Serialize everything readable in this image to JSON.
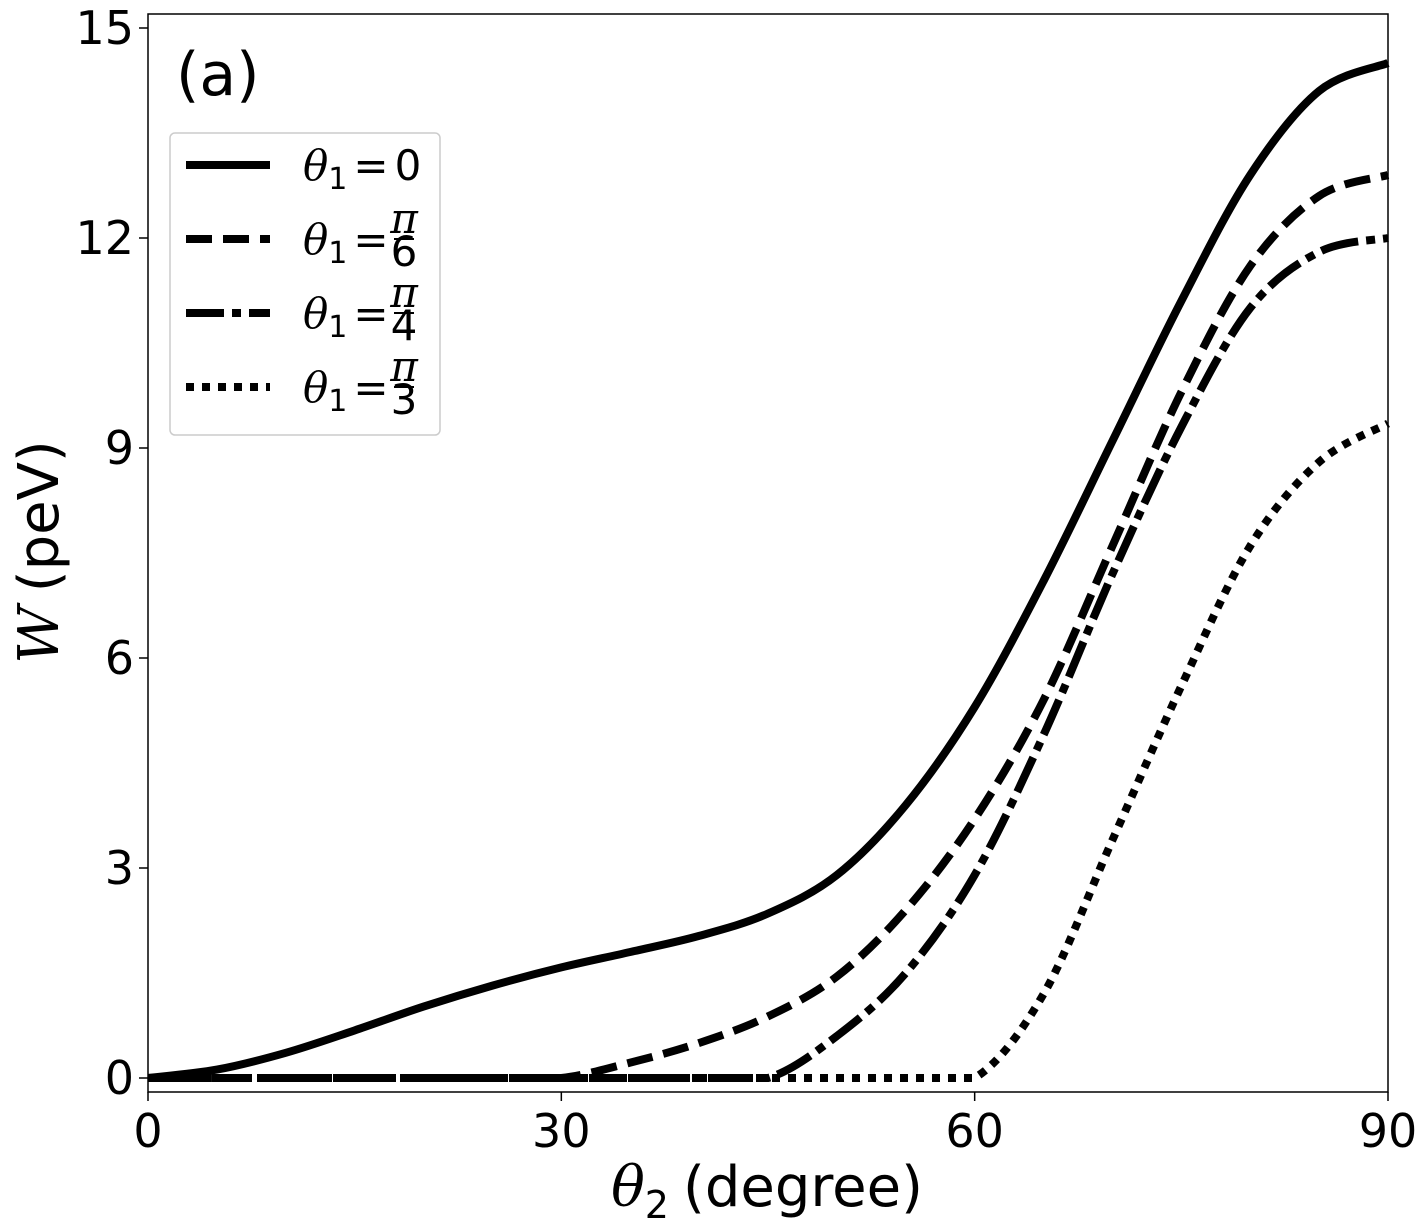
{
  "chart_data": {
    "type": "line",
    "panel_label": "(a)",
    "xlabel": {
      "symbol": "θ",
      "subscript": "2",
      "unit": "(degree)"
    },
    "ylabel": {
      "symbol": "W",
      "unit": "(peV)"
    },
    "xlim": [
      0,
      90
    ],
    "ylim": [
      -0.2,
      15.2
    ],
    "xticks": [
      0,
      30,
      60,
      90
    ],
    "yticks": [
      0,
      3,
      6,
      9,
      12,
      15
    ],
    "grid": false,
    "legend_position": "upper-left",
    "color": "#000000",
    "x": [
      0,
      5,
      10,
      15,
      20,
      25,
      30,
      35,
      40,
      45,
      50,
      55,
      60,
      65,
      70,
      75,
      80,
      85,
      90
    ],
    "series": [
      {
        "legend": {
          "symbol": "θ",
          "subscript": "1",
          "rel": "=",
          "value": "0"
        },
        "linestyle": "solid",
        "values": [
          0,
          0.12,
          0.36,
          0.68,
          1.02,
          1.32,
          1.58,
          1.8,
          2.03,
          2.35,
          2.9,
          3.9,
          5.3,
          7.1,
          9.1,
          11.1,
          12.9,
          14.1,
          14.5
        ]
      },
      {
        "legend": {
          "symbol": "θ",
          "subscript": "1",
          "rel": "=",
          "num": "π",
          "den": "6"
        },
        "linestyle": "dashed",
        "values": [
          0,
          0,
          0,
          0,
          0,
          0,
          0,
          0.22,
          0.5,
          0.88,
          1.45,
          2.4,
          3.7,
          5.4,
          7.6,
          9.8,
          11.6,
          12.6,
          12.9
        ]
      },
      {
        "legend": {
          "symbol": "θ",
          "subscript": "1",
          "rel": "=",
          "num": "π",
          "den": "4"
        },
        "linestyle": "dashdot",
        "values": [
          0,
          0,
          0,
          0,
          0,
          0,
          0,
          0,
          0,
          0,
          0.6,
          1.5,
          2.9,
          4.9,
          7.2,
          9.3,
          11.0,
          11.8,
          12.0
        ]
      },
      {
        "legend": {
          "symbol": "θ",
          "subscript": "1",
          "rel": "=",
          "num": "π",
          "den": "3"
        },
        "linestyle": "dotted",
        "values": [
          0,
          0,
          0,
          0,
          0,
          0,
          0,
          0,
          0,
          0,
          0,
          0,
          0,
          1.2,
          3.4,
          5.6,
          7.6,
          8.8,
          9.35
        ]
      }
    ]
  }
}
